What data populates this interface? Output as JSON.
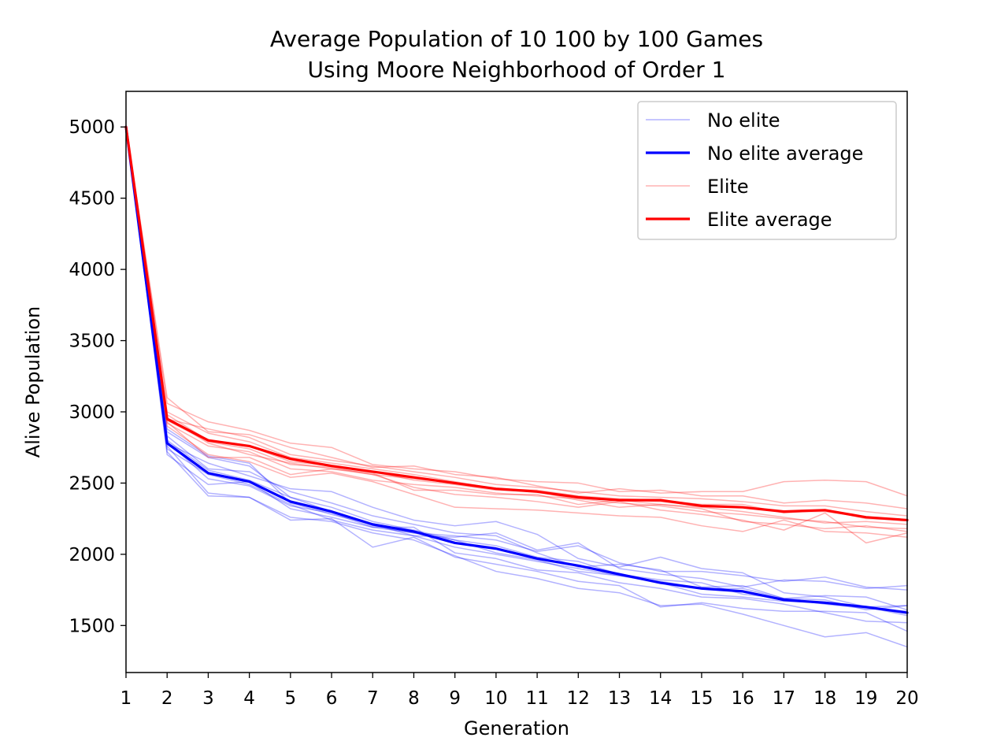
{
  "chart_data": {
    "type": "line",
    "title": "Average Population of 10 100 by 100 Games",
    "subtitle": "Using Moore Neighborhood of Order 1",
    "xlabel": "Generation",
    "ylabel": "Alive Population",
    "xlim": [
      1,
      20
    ],
    "ylim": [
      1170,
      5250
    ],
    "x": [
      1,
      2,
      3,
      4,
      5,
      6,
      7,
      8,
      9,
      10,
      11,
      12,
      13,
      14,
      15,
      16,
      17,
      18,
      19,
      20
    ],
    "x_ticks": [
      "1",
      "2",
      "3",
      "4",
      "5",
      "6",
      "7",
      "8",
      "9",
      "10",
      "11",
      "12",
      "13",
      "14",
      "15",
      "16",
      "17",
      "18",
      "19",
      "20"
    ],
    "y_ticks": [
      1500,
      2000,
      2500,
      3000,
      3500,
      4000,
      4500,
      5000
    ],
    "grid": false,
    "legend_position": "top-right",
    "legend": [
      {
        "label": "No elite",
        "color": "#0000ff",
        "style": "thin"
      },
      {
        "label": "No elite average",
        "color": "#0000ff",
        "style": "thick"
      },
      {
        "label": "Elite",
        "color": "#ff0000",
        "style": "thin"
      },
      {
        "label": "Elite average",
        "color": "#ff0000",
        "style": "thick"
      }
    ],
    "colors": {
      "no_elite": "#0000ff",
      "elite": "#ff0000"
    },
    "series": [
      {
        "group": "no_elite",
        "values": [
          5000,
          2720,
          2410,
          2400,
          2240,
          2250,
          2050,
          2120,
          1980,
          1930,
          1880,
          1810,
          1780,
          1630,
          1660,
          1620,
          1600,
          1600,
          1590,
          1460
        ]
      },
      {
        "group": "no_elite",
        "values": [
          5000,
          2760,
          2430,
          2400,
          2260,
          2230,
          2150,
          2100,
          1990,
          1880,
          1830,
          1760,
          1730,
          1640,
          1650,
          1580,
          1500,
          1420,
          1450,
          1350
        ]
      },
      {
        "group": "no_elite",
        "values": [
          5000,
          2700,
          2490,
          2510,
          2320,
          2260,
          2190,
          2190,
          2010,
          1970,
          1890,
          1870,
          1800,
          1760,
          1700,
          1690,
          1650,
          1590,
          1530,
          1520
        ]
      },
      {
        "group": "no_elite",
        "values": [
          5000,
          2740,
          2560,
          2490,
          2350,
          2240,
          2170,
          2130,
          2050,
          2000,
          1950,
          1900,
          1850,
          1810,
          1760,
          1760,
          1690,
          1650,
          1620,
          1600
        ]
      },
      {
        "group": "no_elite",
        "values": [
          5000,
          2800,
          2590,
          2520,
          2400,
          2330,
          2230,
          2170,
          2100,
          2060,
          1980,
          1950,
          1860,
          1820,
          1800,
          1720,
          1690,
          1680,
          1610,
          1640
        ]
      },
      {
        "group": "no_elite",
        "values": [
          5000,
          2830,
          2600,
          2580,
          2440,
          2360,
          2270,
          2210,
          2150,
          2130,
          2010,
          1910,
          1930,
          1890,
          1770,
          1780,
          1690,
          1710,
          1700,
          1610
        ]
      },
      {
        "group": "no_elite",
        "values": [
          5000,
          2780,
          2640,
          2550,
          2460,
          2440,
          2330,
          2240,
          2200,
          2230,
          2140,
          1970,
          1910,
          1980,
          1900,
          1870,
          1730,
          1700,
          1630,
          1640
        ]
      },
      {
        "group": "no_elite",
        "values": [
          5000,
          2860,
          2680,
          2620,
          2400,
          2300,
          2200,
          2150,
          2130,
          2100,
          2020,
          2060,
          1940,
          1880,
          1880,
          1850,
          1810,
          1840,
          1770,
          1750
        ]
      },
      {
        "group": "no_elite",
        "values": [
          5000,
          2880,
          2690,
          2640,
          2360,
          2280,
          2210,
          2130,
          2120,
          2150,
          2030,
          2080,
          1900,
          1860,
          1830,
          1770,
          1820,
          1810,
          1760,
          1780
        ]
      },
      {
        "group": "no_elite",
        "values": [
          5000,
          2790,
          2530,
          2480,
          2340,
          2290,
          2190,
          2150,
          2100,
          2010,
          1960,
          1880,
          1850,
          1800,
          1720,
          1700,
          1670,
          1660,
          1630,
          1570
        ]
      },
      {
        "group": "elite",
        "values": [
          5000,
          2900,
          2700,
          2650,
          2540,
          2570,
          2510,
          2420,
          2330,
          2320,
          2310,
          2290,
          2270,
          2260,
          2200,
          2160,
          2240,
          2160,
          2150,
          2120
        ]
      },
      {
        "group": "elite",
        "values": [
          5000,
          2930,
          2680,
          2680,
          2560,
          2600,
          2560,
          2470,
          2420,
          2400,
          2370,
          2330,
          2370,
          2310,
          2280,
          2240,
          2170,
          2290,
          2080,
          2150
        ]
      },
      {
        "group": "elite",
        "values": [
          5000,
          2960,
          2780,
          2700,
          2640,
          2600,
          2570,
          2450,
          2450,
          2420,
          2420,
          2350,
          2380,
          2350,
          2320,
          2230,
          2210,
          2180,
          2200,
          2160
        ]
      },
      {
        "group": "elite",
        "values": [
          5000,
          2980,
          2800,
          2760,
          2650,
          2620,
          2580,
          2520,
          2490,
          2450,
          2440,
          2380,
          2330,
          2350,
          2330,
          2300,
          2260,
          2220,
          2230,
          2210
        ]
      },
      {
        "group": "elite",
        "values": [
          5000,
          3000,
          2850,
          2790,
          2680,
          2640,
          2600,
          2560,
          2510,
          2460,
          2450,
          2410,
          2390,
          2380,
          2350,
          2350,
          2290,
          2310,
          2250,
          2240
        ]
      },
      {
        "group": "elite",
        "values": [
          5000,
          2950,
          2880,
          2820,
          2700,
          2660,
          2620,
          2580,
          2540,
          2490,
          2470,
          2440,
          2410,
          2400,
          2390,
          2370,
          2340,
          2340,
          2300,
          2270
        ]
      },
      {
        "group": "elite",
        "values": [
          5000,
          3060,
          2930,
          2870,
          2780,
          2750,
          2630,
          2600,
          2580,
          2530,
          2510,
          2500,
          2440,
          2450,
          2410,
          2410,
          2360,
          2380,
          2360,
          2320
        ]
      },
      {
        "group": "elite",
        "values": [
          5000,
          3100,
          2860,
          2840,
          2750,
          2680,
          2610,
          2620,
          2560,
          2540,
          2480,
          2430,
          2460,
          2430,
          2440,
          2440,
          2510,
          2520,
          2510,
          2410
        ]
      },
      {
        "group": "elite",
        "values": [
          5000,
          2920,
          2760,
          2720,
          2600,
          2580,
          2520,
          2490,
          2470,
          2430,
          2410,
          2390,
          2360,
          2340,
          2300,
          2280,
          2250,
          2230,
          2190,
          2180
        ]
      },
      {
        "group": "elite",
        "values": [
          5000,
          2940,
          2790,
          2740,
          2630,
          2610,
          2560,
          2530,
          2500,
          2460,
          2440,
          2400,
          2380,
          2370,
          2340,
          2330,
          2300,
          2300,
          2260,
          2240
        ]
      },
      {
        "group": "no_elite_average",
        "values": [
          5000,
          2780,
          2570,
          2510,
          2370,
          2300,
          2210,
          2160,
          2080,
          2040,
          1970,
          1920,
          1860,
          1800,
          1760,
          1740,
          1680,
          1660,
          1630,
          1590
        ]
      },
      {
        "group": "elite_average",
        "values": [
          5000,
          2950,
          2800,
          2760,
          2670,
          2620,
          2580,
          2540,
          2500,
          2460,
          2440,
          2400,
          2380,
          2380,
          2340,
          2330,
          2300,
          2310,
          2260,
          2240
        ]
      }
    ]
  }
}
